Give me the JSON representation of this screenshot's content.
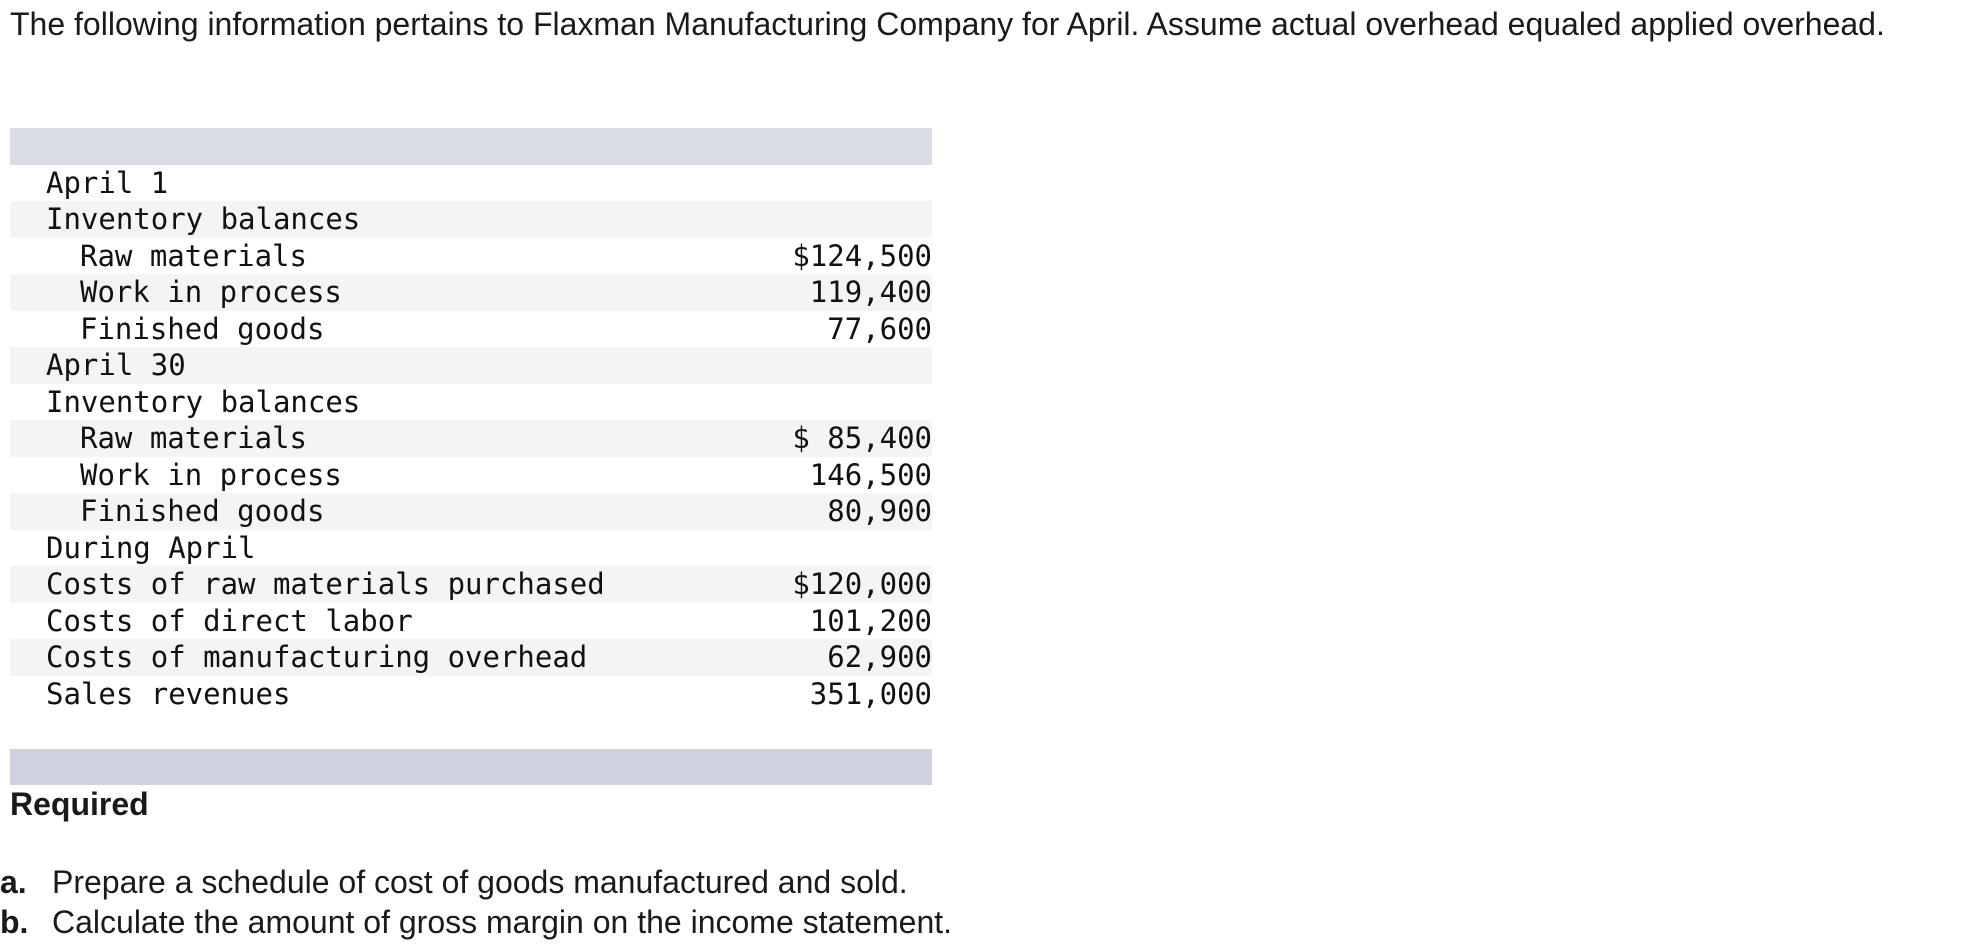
{
  "intro_text": "The following information pertains to Flaxman Manufacturing Company for April. Assume actual overhead equaled applied overhead.",
  "table": {
    "rows": [
      {
        "label": "April 1",
        "value": "",
        "indent": 0
      },
      {
        "label": "Inventory balances",
        "value": "",
        "indent": 0
      },
      {
        "label": "Raw materials",
        "value": "$124,500",
        "indent": 1
      },
      {
        "label": "Work in process",
        "value": "119,400",
        "indent": 1
      },
      {
        "label": "Finished goods",
        "value": "77,600",
        "indent": 1
      },
      {
        "label": "April 30",
        "value": "",
        "indent": 0
      },
      {
        "label": "Inventory balances",
        "value": "",
        "indent": 0
      },
      {
        "label": "Raw materials",
        "value": "$ 85,400",
        "indent": 1
      },
      {
        "label": "Work in process",
        "value": "146,500",
        "indent": 1
      },
      {
        "label": "Finished goods",
        "value": "80,900",
        "indent": 1
      },
      {
        "label": "During April",
        "value": "",
        "indent": 0
      },
      {
        "label": "Costs of raw materials purchased",
        "value": "$120,000",
        "indent": 0
      },
      {
        "label": "Costs of direct labor",
        "value": "101,200",
        "indent": 0
      },
      {
        "label": "Costs of manufacturing overhead",
        "value": "62,900",
        "indent": 0
      },
      {
        "label": "Sales revenues",
        "value": "351,000",
        "indent": 0
      }
    ]
  },
  "required": {
    "heading": "Required",
    "items": [
      {
        "letter": "a.",
        "text": "Prepare a schedule of cost of goods manufactured and sold."
      },
      {
        "letter": "b.",
        "text": "Calculate the amount of gross margin on the income statement."
      }
    ]
  }
}
